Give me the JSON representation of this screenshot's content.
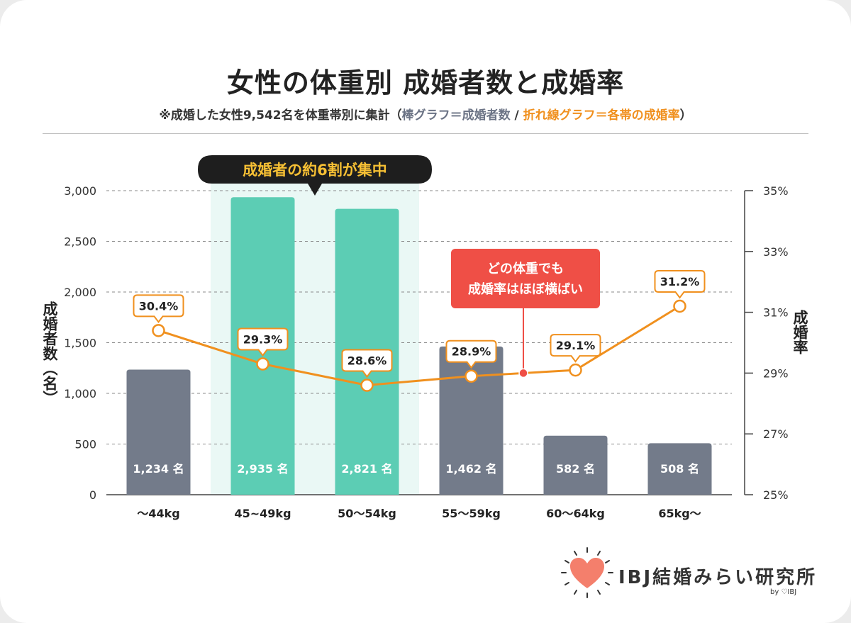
{
  "title": "女性の体重別 成婚者数と成婚率",
  "subtitle": {
    "prefix": "※成婚した女性9,542名を体重帯別に集計（",
    "bar_note": "棒グラフ＝成婚者数",
    "sep": " / ",
    "line_note": "折れ線グラフ＝各帯の成婚率",
    "suffix": "）"
  },
  "chart_data": {
    "type": "bar",
    "categories": [
      "～44kg",
      "45~49kg",
      "50～54kg",
      "55～59kg",
      "60～64kg",
      "65kg～"
    ],
    "series": [
      {
        "name": "成婚者数",
        "type": "bar",
        "axis": "left",
        "values": [
          1234,
          2935,
          2821,
          1462,
          582,
          508
        ],
        "labels": [
          "1,234 名",
          "2,935 名",
          "2,821 名",
          "1,462 名",
          "582 名",
          "508 名"
        ]
      },
      {
        "name": "成婚率",
        "type": "line",
        "axis": "right",
        "values": [
          30.4,
          29.3,
          28.6,
          28.9,
          29.1,
          31.2
        ],
        "labels": [
          "30.4%",
          "29.3%",
          "28.6%",
          "28.9%",
          "29.1%",
          "31.2%"
        ]
      }
    ],
    "highlight_categories": [
      "45~49kg",
      "50～54kg"
    ],
    "ylabel": "成婚者数（名）",
    "y2label": "成婚率",
    "ylim": [
      0,
      3000
    ],
    "y2lim": [
      25,
      35
    ],
    "yticks": [
      0,
      500,
      1000,
      1500,
      2000,
      2500,
      3000
    ],
    "ytick_labels": [
      "0",
      "500",
      "1,000",
      "1,500",
      "2,000",
      "2,500",
      "3,000"
    ],
    "y2ticks": [
      25,
      27,
      29,
      31,
      33,
      35
    ],
    "y2tick_labels": [
      "25%",
      "27%",
      "29%",
      "31%",
      "33%",
      "35%"
    ],
    "grid": true,
    "annotations": [
      {
        "text": "成婚者の約6割が集中",
        "target": "45~49kg,50～54kg"
      },
      {
        "text": "どの体重でも",
        "text2": "成婚率はほぼ横ばい",
        "target_rate": 29.0
      }
    ],
    "colors": {
      "bar": "#737b8a",
      "bar_highlight": "#5ccdb4",
      "highlight_bg": "#eaf8f5",
      "line": "#f0901e",
      "callout": "#ef4f46",
      "badge": "#1e1e1e",
      "badge_text": "#f7c034"
    }
  },
  "logo": {
    "text": "IBJ結婚みらい研究所",
    "by": "by ♡IBJ",
    "heart_color": "#f47f6c"
  }
}
